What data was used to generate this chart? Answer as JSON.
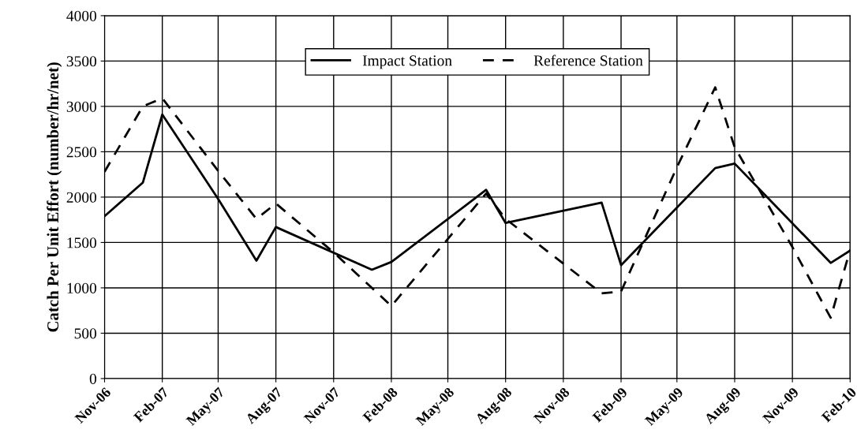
{
  "chart_data": {
    "type": "line",
    "ylabel": "Catch Per Unit Effort (number/hr/net)",
    "xlim": [
      "2006-11",
      "2010-02"
    ],
    "xticks": [
      {
        "value": "2006-11",
        "label": "Nov-06"
      },
      {
        "value": "2007-02",
        "label": "Feb-07"
      },
      {
        "value": "2007-05",
        "label": "May-07"
      },
      {
        "value": "2007-08",
        "label": "Aug-07"
      },
      {
        "value": "2007-11",
        "label": "Nov-07"
      },
      {
        "value": "2008-02",
        "label": "Feb-08"
      },
      {
        "value": "2008-05",
        "label": "May-08"
      },
      {
        "value": "2008-08",
        "label": "Aug-08"
      },
      {
        "value": "2008-11",
        "label": "Nov-08"
      },
      {
        "value": "2009-02",
        "label": "Feb-09"
      },
      {
        "value": "2009-05",
        "label": "May-09"
      },
      {
        "value": "2009-08",
        "label": "Aug-09"
      },
      {
        "value": "2009-11",
        "label": "Nov-09"
      },
      {
        "value": "2010-02",
        "label": "Feb-10"
      }
    ],
    "ylim": [
      0,
      4000
    ],
    "yticks": [
      0,
      500,
      1000,
      1500,
      2000,
      2500,
      3000,
      3500,
      4000
    ],
    "grid": true,
    "legend": "top",
    "marker": "none",
    "series": [
      {
        "name": "Impact Station",
        "color": "#000000",
        "line_style": "solid",
        "x": [
          "2006-11",
          "2007-01",
          "2007-02",
          "2007-05",
          "2007-07",
          "2007-08",
          "2008-01",
          "2008-02",
          "2008-07",
          "2008-08",
          "2009-01",
          "2009-02",
          "2009-07",
          "2009-08",
          "2010-01",
          "2010-02"
        ],
        "values": [
          1790,
          2160,
          2910,
          1980,
          1300,
          1670,
          1200,
          1285,
          2080,
          1715,
          1940,
          1250,
          2320,
          2370,
          1275,
          1410
        ]
      },
      {
        "name": "Reference Station",
        "color": "#000000",
        "line_style": "dashed",
        "x": [
          "2006-11",
          "2007-01",
          "2007-02",
          "2007-05",
          "2007-07",
          "2007-08",
          "2007-11",
          "2008-02",
          "2008-07",
          "2008-08",
          "2009-01",
          "2009-02",
          "2009-05",
          "2009-07",
          "2009-08",
          "2009-11",
          "2010-01",
          "2010-02"
        ],
        "values": [
          2280,
          3000,
          3090,
          2290,
          1760,
          1930,
          1390,
          800,
          2040,
          1760,
          940,
          960,
          2330,
          3210,
          2550,
          1450,
          670,
          1420
        ]
      }
    ]
  }
}
